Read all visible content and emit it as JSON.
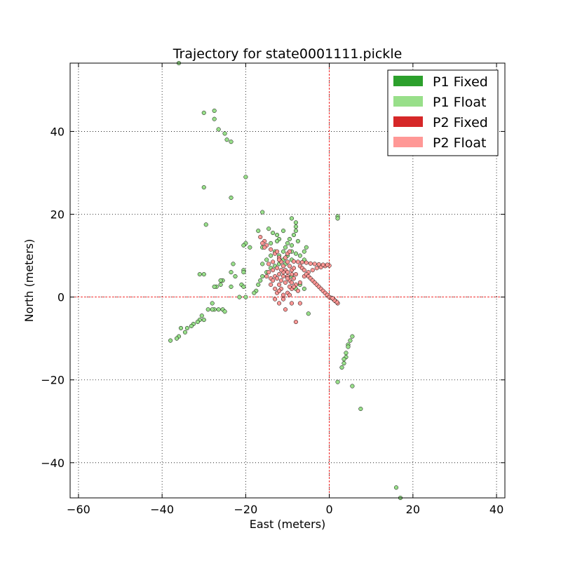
{
  "chart_data": {
    "type": "scatter",
    "title": "Trajectory for state0001111.pickle",
    "xlabel": "East (meters)",
    "ylabel": "North (meters)",
    "xlim": [
      -62,
      42
    ],
    "ylim": [
      -48.5,
      56.5
    ],
    "xticks": [
      -60,
      -40,
      -20,
      0,
      20,
      40
    ],
    "yticks": [
      -40,
      -20,
      0,
      20,
      40
    ],
    "xtick_labels": [
      "−60",
      "−40",
      "−20",
      "0",
      "20",
      "40"
    ],
    "ytick_labels": [
      "−40",
      "−20",
      "0",
      "20",
      "40"
    ],
    "grid": true,
    "reference_lines": {
      "x": 0,
      "y": 0,
      "color": "#ff0000"
    },
    "legend_position": "top-right",
    "series": [
      {
        "name": "P1 Fixed",
        "color": "#2ca02c",
        "points": []
      },
      {
        "name": "P1 Float",
        "color": "#98df8a",
        "points": [
          [
            -36,
            56.5
          ],
          [
            -30,
            44.5
          ],
          [
            -27.5,
            45
          ],
          [
            -27.5,
            43
          ],
          [
            -26.5,
            40.5
          ],
          [
            -25,
            39.5
          ],
          [
            -24.5,
            38
          ],
          [
            -23.5,
            37.5
          ],
          [
            -20,
            29
          ],
          [
            -30,
            26.5
          ],
          [
            -23.5,
            24
          ],
          [
            -29.5,
            17.5
          ],
          [
            -20,
            13
          ],
          [
            -20.5,
            12.5
          ],
          [
            -20.5,
            6.5
          ],
          [
            -20.5,
            6
          ],
          [
            -23,
            8
          ],
          [
            -23.5,
            6
          ],
          [
            -22.5,
            5
          ],
          [
            -21,
            3
          ],
          [
            -23.5,
            2.5
          ],
          [
            -20.5,
            2.5
          ],
          [
            -25.5,
            4
          ],
          [
            -26,
            4
          ],
          [
            -26,
            3
          ],
          [
            -27,
            2.5
          ],
          [
            -27.5,
            2.5
          ],
          [
            -30,
            5.5
          ],
          [
            -31,
            5.5
          ],
          [
            -28,
            -1.5
          ],
          [
            -27.5,
            -3
          ],
          [
            -26.5,
            -3
          ],
          [
            -25.5,
            -3
          ],
          [
            -25,
            -3.5
          ],
          [
            -28,
            -3
          ],
          [
            -29,
            -3
          ],
          [
            -30.5,
            -4.5
          ],
          [
            -31,
            -5.5
          ],
          [
            -30,
            -5.5
          ],
          [
            -31.5,
            -6
          ],
          [
            -32.5,
            -6.5
          ],
          [
            -33,
            -7
          ],
          [
            -34,
            -7.5
          ],
          [
            -35.5,
            -7.5
          ],
          [
            -34.5,
            -8.5
          ],
          [
            -36,
            -9.5
          ],
          [
            -36.5,
            -10
          ],
          [
            -38,
            -10.5
          ],
          [
            -16,
            20.5
          ],
          [
            -14.5,
            16.5
          ],
          [
            -13.5,
            15.5
          ],
          [
            -12.5,
            15
          ],
          [
            -17,
            16
          ],
          [
            -19,
            12
          ],
          [
            -16,
            12
          ],
          [
            -9,
            19
          ],
          [
            -8,
            18
          ],
          [
            -8,
            17
          ],
          [
            -8,
            16
          ],
          [
            -8.5,
            15
          ],
          [
            -9.5,
            14
          ],
          [
            -10,
            13
          ],
          [
            -10.5,
            12
          ],
          [
            -11,
            11
          ],
          [
            -9,
            11
          ],
          [
            -8,
            10.5
          ],
          [
            -7,
            10
          ],
          [
            -6,
            11
          ],
          [
            -5.5,
            12
          ],
          [
            -9,
            12.5
          ],
          [
            -10,
            10
          ],
          [
            -11,
            9
          ],
          [
            -12,
            8
          ],
          [
            -13,
            7.5
          ],
          [
            -14,
            7
          ],
          [
            -15,
            6
          ],
          [
            -16,
            5
          ],
          [
            -16.5,
            4
          ],
          [
            -17,
            3
          ],
          [
            -17.5,
            1.5
          ],
          [
            -18,
            1
          ],
          [
            -20,
            0
          ],
          [
            -21.5,
            0
          ],
          [
            -14,
            13
          ],
          [
            -12,
            14
          ],
          [
            -11,
            16
          ],
          [
            -12.5,
            13.5
          ],
          [
            -7.5,
            13.5
          ],
          [
            -6,
            9
          ],
          [
            -9,
            9
          ],
          [
            -10.5,
            8
          ],
          [
            -12,
            10
          ],
          [
            -14,
            10
          ],
          [
            -15,
            9
          ],
          [
            -16,
            8
          ],
          [
            -13,
            11
          ],
          [
            2,
            19.5
          ],
          [
            2,
            19
          ],
          [
            -5,
            -4
          ],
          [
            -9,
            5
          ],
          [
            -7,
            3
          ],
          [
            -6,
            2
          ],
          [
            -8,
            2
          ],
          [
            5.5,
            -9.5
          ],
          [
            5,
            -10.5
          ],
          [
            4.5,
            -11.5
          ],
          [
            4.5,
            -12
          ],
          [
            4,
            -13.5
          ],
          [
            4,
            -14.5
          ],
          [
            3.5,
            -15
          ],
          [
            3.5,
            -16
          ],
          [
            3,
            -17
          ],
          [
            2,
            -20.5
          ],
          [
            5.5,
            -21.5
          ],
          [
            7.5,
            -27
          ],
          [
            16,
            -46
          ],
          [
            17,
            -48.5
          ]
        ]
      },
      {
        "name": "P2 Fixed",
        "color": "#d62728",
        "points": []
      },
      {
        "name": "P2 Float",
        "color": "#ff9896",
        "points": [
          [
            -16.5,
            14.5
          ],
          [
            -15.5,
            13.5
          ],
          [
            -15,
            12.5
          ],
          [
            -14,
            11.5
          ],
          [
            -13,
            10.5
          ],
          [
            -12,
            9.5
          ],
          [
            -11.5,
            8.5
          ],
          [
            -11,
            7.5
          ],
          [
            -10.5,
            6.5
          ],
          [
            -10,
            6
          ],
          [
            -11,
            5
          ],
          [
            -12,
            5.5
          ],
          [
            -13,
            5
          ],
          [
            -14,
            4.5
          ],
          [
            -15,
            5
          ],
          [
            -14.5,
            6
          ],
          [
            -13.5,
            6.5
          ],
          [
            -12.5,
            7
          ],
          [
            -11.5,
            4
          ],
          [
            -10.5,
            3.5
          ],
          [
            -9.5,
            4
          ],
          [
            -8.5,
            4.5
          ],
          [
            -8,
            5.5
          ],
          [
            -9,
            6.5
          ],
          [
            -9.5,
            7.5
          ],
          [
            -10,
            8.5
          ],
          [
            -10.5,
            9.5
          ],
          [
            -10,
            10.5
          ],
          [
            -9.5,
            11
          ],
          [
            -12,
            3
          ],
          [
            -11.5,
            2
          ],
          [
            -12.5,
            1
          ],
          [
            -11,
            0.5
          ],
          [
            -10,
            1
          ],
          [
            -9,
            2
          ],
          [
            -8,
            3
          ],
          [
            -7,
            3.5
          ],
          [
            -6,
            5
          ],
          [
            -5,
            6
          ],
          [
            -4,
            6.5
          ],
          [
            -3,
            7
          ],
          [
            -2,
            7.2
          ],
          [
            -1,
            7.5
          ],
          [
            0,
            7.6
          ],
          [
            -0.5,
            7.8
          ],
          [
            -1.5,
            7.8
          ],
          [
            -2.5,
            7.9
          ],
          [
            -3.5,
            8
          ],
          [
            -4.5,
            8.1
          ],
          [
            -5.5,
            8.3
          ],
          [
            -6.5,
            8.4
          ],
          [
            -7.5,
            8.5
          ],
          [
            -8.5,
            8.6
          ],
          [
            -7,
            7.5
          ],
          [
            -6.5,
            7
          ],
          [
            -6,
            6.5
          ],
          [
            -5.5,
            5.5
          ],
          [
            -5,
            5
          ],
          [
            -4.5,
            4.5
          ],
          [
            -4,
            4
          ],
          [
            -3.5,
            3.5
          ],
          [
            -3,
            3
          ],
          [
            -2.5,
            2.5
          ],
          [
            -2,
            2
          ],
          [
            -1.5,
            1.5
          ],
          [
            -1,
            1
          ],
          [
            -0.5,
            0.5
          ],
          [
            0,
            0
          ],
          [
            0.5,
            -0.2
          ],
          [
            1,
            -0.5
          ],
          [
            1.5,
            -1
          ],
          [
            2,
            -1.5
          ],
          [
            1.8,
            -1.2
          ],
          [
            1.2,
            -0.8
          ],
          [
            0.8,
            -0.3
          ],
          [
            -13,
            2
          ],
          [
            -14,
            3
          ],
          [
            -12,
            1.5
          ],
          [
            -9.5,
            0.5
          ],
          [
            -7.5,
            1.5
          ],
          [
            -11,
            -0.5
          ],
          [
            -9,
            -1.5
          ],
          [
            -10.5,
            -3
          ],
          [
            -12,
            -1.5
          ],
          [
            -13,
            -0.5
          ],
          [
            -7,
            -1.5
          ],
          [
            -8,
            -6
          ],
          [
            -16,
            13
          ],
          [
            -15.5,
            12
          ],
          [
            -12.5,
            11
          ],
          [
            -12,
            9
          ],
          [
            -13.5,
            8.5
          ],
          [
            -14.5,
            8
          ],
          [
            -11,
            6
          ],
          [
            -10,
            5
          ],
          [
            -9,
            5.5
          ],
          [
            -8.5,
            7
          ],
          [
            -11.5,
            6.5
          ],
          [
            -12.5,
            4.5
          ],
          [
            -13.5,
            4
          ],
          [
            -10,
            4.5
          ],
          [
            -9,
            3.5
          ],
          [
            -8.5,
            2.5
          ],
          [
            -9.5,
            2.5
          ]
        ]
      }
    ]
  }
}
